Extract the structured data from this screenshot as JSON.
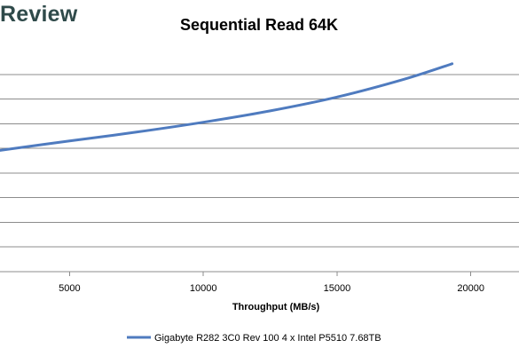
{
  "brand": {
    "text": "Review"
  },
  "chart_data": {
    "type": "line",
    "title": "Sequential Read 64K",
    "xlabel": "Throughput (MB/s)",
    "ylabel": "",
    "xlim": [
      2400,
      21800
    ],
    "ylim": [
      0,
      9
    ],
    "xticks": [
      5000,
      10000,
      15000,
      20000
    ],
    "gridlines": [
      1,
      2,
      3,
      4,
      5,
      6,
      7,
      8
    ],
    "grid": true,
    "legend": "bottom",
    "series": [
      {
        "name": "Gigabyte R282 3C0 Rev 100 4 x Intel P5510 7.68TB",
        "color": "#4f7bbf",
        "x": [
          2400,
          5000,
          7500,
          10000,
          12500,
          15000,
          17500,
          19300
        ],
        "y": [
          4.92,
          5.3,
          5.66,
          6.06,
          6.52,
          7.08,
          7.8,
          8.43
        ]
      }
    ]
  }
}
